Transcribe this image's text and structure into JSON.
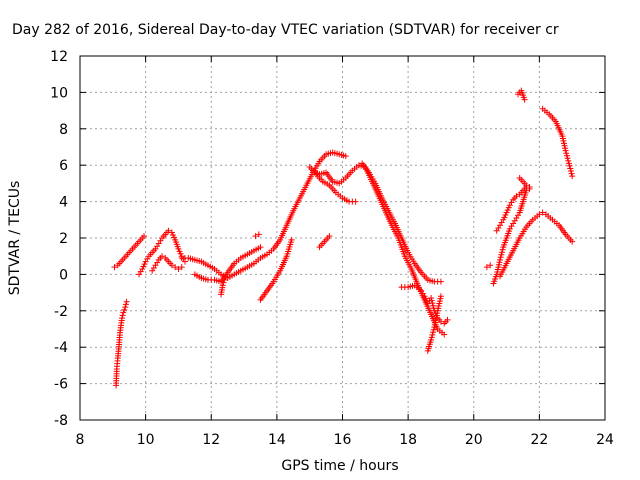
{
  "chart_data": {
    "type": "scatter",
    "title": "Day 282 of 2016, Sidereal Day-to-day VTEC variation (SDTVAR) for receiver cr",
    "xlabel": "GPS time / hours",
    "ylabel": "SDTVAR / TECUs",
    "xlim": [
      8,
      24
    ],
    "ylim": [
      -8,
      12
    ],
    "xticks": [
      "8",
      "10",
      "12",
      "14",
      "16",
      "18",
      "20",
      "22",
      "24"
    ],
    "yticks": [
      "-8",
      "-6",
      "-4",
      "-2",
      "0",
      "2",
      "4",
      "6",
      "8",
      "10",
      "12"
    ],
    "grid": true,
    "marker": "+",
    "color": "#ff0000",
    "series": [
      {
        "points": [
          [
            9.1,
            -6.1
          ],
          [
            9.12,
            -5.2
          ],
          [
            9.15,
            -4.6
          ],
          [
            9.18,
            -4.1
          ],
          [
            9.2,
            -3.6
          ],
          [
            9.22,
            -3.2
          ],
          [
            9.25,
            -2.8
          ],
          [
            9.28,
            -2.4
          ],
          [
            9.32,
            -2.1
          ],
          [
            9.38,
            -1.8
          ],
          [
            9.42,
            -1.5
          ]
        ]
      },
      {
        "points": [
          [
            9.05,
            0.4
          ],
          [
            9.15,
            0.5
          ],
          [
            9.25,
            0.7
          ],
          [
            9.35,
            0.9
          ],
          [
            9.45,
            1.1
          ],
          [
            9.55,
            1.3
          ],
          [
            9.65,
            1.5
          ],
          [
            9.75,
            1.7
          ],
          [
            9.85,
            1.9
          ],
          [
            9.95,
            2.1
          ]
        ]
      },
      {
        "points": [
          [
            9.8,
            0.0
          ],
          [
            9.9,
            0.3
          ],
          [
            10.0,
            0.7
          ],
          [
            10.1,
            1.0
          ],
          [
            10.2,
            1.2
          ],
          [
            10.3,
            1.4
          ],
          [
            10.4,
            1.7
          ],
          [
            10.5,
            2.0
          ],
          [
            10.6,
            2.2
          ],
          [
            10.7,
            2.4
          ],
          [
            10.8,
            2.3
          ],
          [
            10.9,
            1.9
          ],
          [
            11.0,
            1.4
          ],
          [
            11.1,
            1.0
          ],
          [
            11.2,
            0.7
          ]
        ]
      },
      {
        "points": [
          [
            10.2,
            0.2
          ],
          [
            10.3,
            0.5
          ],
          [
            10.4,
            0.8
          ],
          [
            10.5,
            1.0
          ],
          [
            10.6,
            0.9
          ],
          [
            10.7,
            0.7
          ],
          [
            10.8,
            0.5
          ],
          [
            10.9,
            0.4
          ],
          [
            11.0,
            0.3
          ],
          [
            11.1,
            0.4
          ]
        ]
      },
      {
        "points": [
          [
            11.1,
            0.9
          ],
          [
            11.3,
            0.9
          ],
          [
            11.5,
            0.8
          ],
          [
            11.7,
            0.7
          ],
          [
            11.9,
            0.5
          ],
          [
            12.1,
            0.3
          ],
          [
            12.3,
            0.0
          ],
          [
            12.5,
            -0.2
          ],
          [
            12.7,
            0.0
          ],
          [
            12.9,
            0.2
          ],
          [
            13.1,
            0.4
          ],
          [
            13.3,
            0.6
          ],
          [
            13.5,
            0.9
          ],
          [
            13.7,
            1.1
          ],
          [
            13.9,
            1.4
          ],
          [
            14.1,
            1.9
          ],
          [
            14.3,
            2.7
          ],
          [
            14.5,
            3.5
          ],
          [
            14.7,
            4.2
          ],
          [
            14.9,
            4.9
          ],
          [
            15.1,
            5.6
          ],
          [
            15.3,
            6.2
          ],
          [
            15.5,
            6.6
          ],
          [
            15.7,
            6.7
          ],
          [
            15.9,
            6.6
          ],
          [
            16.1,
            6.5
          ]
        ]
      },
      {
        "points": [
          [
            11.5,
            0.0
          ],
          [
            11.7,
            -0.2
          ],
          [
            11.9,
            -0.3
          ],
          [
            12.1,
            -0.3
          ],
          [
            12.3,
            -0.4
          ],
          [
            12.5,
            0.1
          ],
          [
            12.7,
            0.6
          ],
          [
            12.9,
            0.9
          ],
          [
            13.1,
            1.1
          ],
          [
            13.3,
            1.3
          ],
          [
            13.5,
            1.5
          ]
        ]
      },
      {
        "points": [
          [
            12.3,
            -1.1
          ],
          [
            12.35,
            -0.6
          ],
          [
            12.4,
            -0.3
          ]
        ]
      },
      {
        "points": [
          [
            13.35,
            2.1
          ],
          [
            13.45,
            2.2
          ]
        ]
      },
      {
        "points": [
          [
            13.5,
            -1.4
          ],
          [
            13.7,
            -0.9
          ],
          [
            13.9,
            -0.4
          ],
          [
            14.1,
            0.2
          ],
          [
            14.3,
            1.0
          ],
          [
            14.45,
            1.9
          ]
        ]
      },
      {
        "points": [
          [
            15.3,
            1.5
          ],
          [
            15.45,
            1.8
          ],
          [
            15.6,
            2.1
          ]
        ]
      },
      {
        "points": [
          [
            15.0,
            5.9
          ],
          [
            15.2,
            5.5
          ],
          [
            15.4,
            5.1
          ],
          [
            15.6,
            4.9
          ],
          [
            15.8,
            4.5
          ],
          [
            16.0,
            4.2
          ],
          [
            16.2,
            4.0
          ],
          [
            16.4,
            4.0
          ]
        ]
      },
      {
        "points": [
          [
            15.1,
            5.7
          ],
          [
            15.3,
            5.5
          ],
          [
            15.5,
            5.6
          ],
          [
            15.7,
            5.1
          ],
          [
            15.9,
            5.0
          ],
          [
            16.1,
            5.3
          ],
          [
            16.3,
            5.7
          ],
          [
            16.5,
            6.0
          ],
          [
            16.7,
            5.9
          ],
          [
            16.9,
            5.1
          ],
          [
            17.1,
            4.3
          ],
          [
            17.3,
            3.5
          ],
          [
            17.5,
            2.7
          ],
          [
            17.7,
            2.0
          ],
          [
            17.9,
            1.0
          ],
          [
            18.1,
            0.3
          ],
          [
            18.3,
            -0.6
          ],
          [
            18.5,
            -1.4
          ],
          [
            18.7,
            -2.2
          ],
          [
            18.9,
            -3.0
          ],
          [
            19.1,
            -3.3
          ]
        ]
      },
      {
        "points": [
          [
            16.6,
            6.1
          ],
          [
            16.8,
            5.6
          ],
          [
            17.0,
            5.0
          ],
          [
            17.2,
            4.2
          ],
          [
            17.4,
            3.5
          ],
          [
            17.6,
            2.8
          ],
          [
            17.8,
            2.0
          ],
          [
            18.0,
            1.2
          ],
          [
            18.2,
            0.6
          ],
          [
            18.4,
            0.1
          ],
          [
            18.6,
            -0.3
          ],
          [
            18.8,
            -0.4
          ],
          [
            19.0,
            -0.4
          ]
        ]
      },
      {
        "points": [
          [
            17.8,
            -0.7
          ],
          [
            18.0,
            -0.7
          ],
          [
            18.2,
            -0.6
          ],
          [
            18.4,
            -0.9
          ],
          [
            18.5,
            -1.2
          ],
          [
            18.6,
            -1.6
          ],
          [
            18.7,
            -1.3
          ],
          [
            18.8,
            -2.0
          ],
          [
            18.9,
            -2.4
          ],
          [
            19.0,
            -2.6
          ],
          [
            19.1,
            -2.7
          ],
          [
            19.2,
            -2.5
          ]
        ]
      },
      {
        "points": [
          [
            18.6,
            -4.2
          ],
          [
            18.7,
            -3.6
          ],
          [
            18.8,
            -2.9
          ],
          [
            18.9,
            -2.0
          ],
          [
            19.0,
            -1.2
          ]
        ]
      },
      {
        "points": [
          [
            20.4,
            0.4
          ],
          [
            20.5,
            0.5
          ]
        ]
      },
      {
        "points": [
          [
            20.6,
            -0.5
          ],
          [
            20.7,
            0.0
          ],
          [
            20.8,
            0.8
          ],
          [
            20.9,
            1.5
          ],
          [
            21.0,
            2.0
          ],
          [
            21.1,
            2.5
          ],
          [
            21.2,
            2.8
          ],
          [
            21.3,
            3.1
          ],
          [
            21.4,
            3.4
          ],
          [
            21.5,
            4.0
          ],
          [
            21.6,
            4.6
          ],
          [
            21.7,
            4.7
          ]
        ]
      },
      {
        "points": [
          [
            20.7,
            2.4
          ],
          [
            20.8,
            2.7
          ],
          [
            20.9,
            3.0
          ],
          [
            21.0,
            3.4
          ],
          [
            21.1,
            3.8
          ],
          [
            21.2,
            4.1
          ],
          [
            21.3,
            4.3
          ],
          [
            21.4,
            4.4
          ],
          [
            21.5,
            4.6
          ],
          [
            21.6,
            4.8
          ],
          [
            21.7,
            4.8
          ]
        ]
      },
      {
        "points": [
          [
            21.4,
            5.3
          ],
          [
            21.5,
            5.1
          ],
          [
            21.6,
            4.9
          ]
        ]
      },
      {
        "points": [
          [
            20.8,
            -0.1
          ],
          [
            21.0,
            0.6
          ],
          [
            21.2,
            1.3
          ],
          [
            21.4,
            2.0
          ],
          [
            21.6,
            2.6
          ],
          [
            21.8,
            3.0
          ],
          [
            22.0,
            3.3
          ],
          [
            22.1,
            3.4
          ],
          [
            22.2,
            3.3
          ],
          [
            22.4,
            3.0
          ],
          [
            22.6,
            2.7
          ],
          [
            22.8,
            2.2
          ],
          [
            22.9,
            2.0
          ],
          [
            23.0,
            1.8
          ]
        ]
      },
      {
        "points": [
          [
            21.35,
            9.9
          ],
          [
            21.45,
            10.1
          ],
          [
            21.55,
            9.6
          ]
        ]
      },
      {
        "points": [
          [
            22.1,
            9.1
          ],
          [
            22.3,
            8.8
          ],
          [
            22.5,
            8.4
          ],
          [
            22.7,
            7.6
          ],
          [
            22.8,
            6.8
          ],
          [
            22.9,
            6.1
          ],
          [
            23.0,
            5.4
          ]
        ]
      }
    ]
  }
}
